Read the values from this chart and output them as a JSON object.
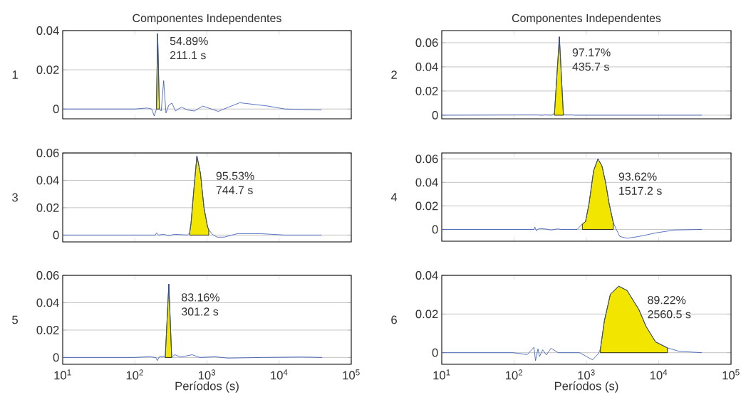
{
  "chart_data": [
    {
      "type": "line",
      "title": "Componentes Independentes",
      "ylabel": "1",
      "log": "x",
      "grid": "y",
      "tick_labels": "y",
      "xlim": [
        10,
        100000
      ],
      "ylim": [
        -0.005,
        0.04
      ],
      "xticks": [
        10,
        100,
        1000,
        10000,
        100000
      ],
      "yticks": [
        0,
        0.02,
        0.04
      ],
      "series": [
        {
          "type": "line",
          "color": "#3153b5",
          "x": [
            10,
            51,
            101,
            148,
            171,
            186,
            199,
            207,
            219,
            232,
            251,
            270,
            296,
            327,
            366,
            443,
            535,
            671,
            876,
            1432,
            2838,
            7047,
            11970,
            38700
          ],
          "values": [
            0,
            0,
            0,
            0.0005,
            0,
            -0.0036,
            0,
            0.0384,
            0,
            -0.001,
            0.0145,
            -0.002,
            0.002,
            0.003,
            -0.001,
            0.001,
            -0.0005,
            -0.001,
            0.0015,
            -0.0012,
            0.0032,
            0.0015,
            0,
            -0.0005
          ]
        },
        {
          "type": "area",
          "color": "#f2e600",
          "x": [
            199,
            207,
            219
          ],
          "values": [
            0,
            0.0384,
            0
          ]
        }
      ],
      "annotations": [
        "54.89%",
        "211.1 s"
      ]
    },
    {
      "type": "line",
      "title": "Componentes Independentes",
      "ylabel": "2",
      "log": "x",
      "grid": "y",
      "tick_labels": "y",
      "xlim": [
        10,
        100000
      ],
      "ylim": [
        -0.003,
        0.07
      ],
      "xticks": [
        10,
        100,
        1000,
        10000,
        100000
      ],
      "yticks": [
        0,
        0.02,
        0.04,
        0.06
      ],
      "series": [
        {
          "type": "line",
          "color": "#3153b5",
          "x": [
            10,
            206,
            240,
            268,
            324,
            362,
            423,
            480,
            511,
            640,
            690,
            39400
          ],
          "values": [
            0,
            0.0003,
            0,
            0.0003,
            0,
            0.0015,
            0.0649,
            0.001,
            0.0003,
            0.0003,
            0,
            0
          ]
        },
        {
          "type": "area",
          "color": "#f2e600",
          "x": [
            362,
            423,
            480
          ],
          "values": [
            0.0015,
            0.0649,
            0.001
          ]
        }
      ],
      "annotations": [
        "97.17%",
        "435.7 s"
      ]
    },
    {
      "type": "line",
      "ylabel": "3",
      "log": "x",
      "grid": "y",
      "tick_labels": "y",
      "xlim": [
        10,
        100000
      ],
      "ylim": [
        -0.005,
        0.06
      ],
      "xticks": [
        10,
        100,
        1000,
        10000,
        100000
      ],
      "yticks": [
        0,
        0.02,
        0.04,
        0.06
      ],
      "series": [
        {
          "type": "line",
          "color": "#3153b5",
          "x": [
            10,
            153,
            192,
            200,
            212,
            251,
            296,
            352,
            426,
            535,
            575,
            600,
            662,
            725,
            811,
            909,
            1019,
            1058,
            1186,
            1381,
            1733,
            2630,
            5610,
            11970,
            38700
          ],
          "values": [
            0,
            0,
            0,
            0.0017,
            0,
            0.0005,
            -0.0005,
            0.0005,
            0.0003,
            0,
            0.0015,
            0.0084,
            0.035,
            0.0579,
            0.0453,
            0.02,
            0.006,
            0.004,
            0.0005,
            -0.0015,
            -0.0015,
            0.001,
            0.001,
            0,
            0
          ]
        },
        {
          "type": "area",
          "color": "#f2e600",
          "x": [
            575,
            600,
            662,
            725,
            811,
            909,
            1019,
            1058
          ],
          "values": [
            0.0015,
            0.0084,
            0.035,
            0.0579,
            0.0453,
            0.02,
            0.006,
            0.004
          ]
        }
      ],
      "annotations": [
        "95.53%",
        "744.7 s"
      ]
    },
    {
      "type": "line",
      "ylabel": "4",
      "log": "x",
      "grid": "y",
      "tick_labels": "y",
      "xlim": [
        10,
        100000
      ],
      "ylim": [
        -0.01,
        0.065
      ],
      "xticks": [
        10,
        100,
        1000,
        10000,
        100000
      ],
      "yticks": [
        0,
        0.02,
        0.04,
        0.06
      ],
      "series": [
        {
          "type": "line",
          "color": "#3153b5",
          "x": [
            10,
            188,
            194,
            203,
            222,
            279,
            324,
            407,
            439,
            745,
            879,
            971,
            1087,
            1259,
            1445,
            1641,
            1845,
            2066,
            2350,
            2592,
            2904,
            3647,
            5320,
            9040,
            16500,
            39400
          ],
          "values": [
            0,
            0,
            0.002,
            -0.001,
            0.0008,
            0.0003,
            -0.0005,
            0.0005,
            0,
            0,
            0.0046,
            0.0066,
            0.0218,
            0.05,
            0.06,
            0.054,
            0.0399,
            0.0218,
            0.006,
            0,
            -0.006,
            -0.0075,
            -0.006,
            -0.003,
            -0.0005,
            0
          ]
        },
        {
          "type": "area",
          "color": "#f2e600",
          "x": [
            879,
            971,
            1087,
            1259,
            1445,
            1641,
            1845,
            2066,
            2350
          ],
          "values": [
            0.0046,
            0.0066,
            0.0218,
            0.05,
            0.06,
            0.054,
            0.0399,
            0.0218,
            0.006
          ]
        }
      ],
      "annotations": [
        "93.62%",
        "1517.2 s"
      ]
    },
    {
      "type": "line",
      "ylabel": "5",
      "xlabel": "Períodos (s)",
      "log": "x",
      "grid": "y",
      "xlim": [
        10,
        100000
      ],
      "ylim": [
        -0.005,
        0.06
      ],
      "xticks": [
        {
          "value": 10,
          "label": "10$^{1}$"
        },
        {
          "value": 100,
          "label": "10$^{2}$"
        },
        {
          "value": 1000,
          "label": "10$^{3}$"
        },
        {
          "value": 10000,
          "label": "10$^{4}$"
        },
        {
          "value": 100000,
          "label": "10$^{5}$"
        }
      ],
      "yticks": [
        0,
        0.02,
        0.04,
        0.06
      ],
      "series": [
        {
          "type": "line",
          "color": "#3153b5",
          "x": [
            10,
            99,
            128,
            162,
            195,
            205,
            219,
            264,
            296,
            324,
            358,
            432,
            622,
            794,
            1300,
            1972,
            5700,
            20700,
            39400
          ],
          "values": [
            0,
            0,
            0.0003,
            0.0005,
            0,
            -0.0023,
            0.0005,
            0.0005,
            0.0537,
            0.0003,
            0.002,
            0.0003,
            0.002,
            0,
            0.0005,
            -0.0005,
            0,
            0.0003,
            0
          ]
        },
        {
          "type": "area",
          "color": "#f2e600",
          "x": [
            264,
            296,
            324
          ],
          "values": [
            0.0005,
            0.0537,
            0.0003
          ]
        }
      ],
      "annotations": [
        "83.16%",
        "301.2 s"
      ]
    },
    {
      "type": "line",
      "ylabel": "6",
      "xlabel": "Períodos (s)",
      "log": "x",
      "grid": "y",
      "xlim": [
        10,
        100000
      ],
      "ylim": [
        -0.006,
        0.04
      ],
      "xticks": [
        {
          "value": 10,
          "label": "10$^{1}$"
        },
        {
          "value": 100,
          "label": "10$^{2}$"
        },
        {
          "value": 1000,
          "label": "10$^{3}$"
        },
        {
          "value": 10000,
          "label": "10$^{4}$"
        },
        {
          "value": 100000,
          "label": "10$^{5}$"
        }
      ],
      "yticks": [
        0,
        0.02,
        0.04
      ],
      "series": [
        {
          "type": "line",
          "color": "#3153b5",
          "x": [
            10,
            97,
            152,
            188,
            198,
            214,
            225,
            249,
            279,
            324,
            407,
            804,
            1216,
            1469,
            1563,
            1778,
            2148,
            2800,
            3649,
            5320,
            6680,
            9040,
            13180,
            19200,
            39400
          ],
          "values": [
            0,
            0,
            -0.001,
            0.0028,
            -0.0041,
            0.002,
            -0.002,
            0.0015,
            -0.0012,
            0.0023,
            0,
            0,
            -0.0037,
            -0.0005,
            0.002,
            0.0167,
            0.0303,
            0.0344,
            0.0322,
            0.0223,
            0.0136,
            0.0056,
            0.0025,
            0.0007,
            0
          ]
        },
        {
          "type": "area",
          "color": "#f2e600",
          "x": [
            1563,
            1778,
            2148,
            2800,
            3649,
            5320,
            6680,
            9040,
            13180
          ],
          "values": [
            0.002,
            0.0167,
            0.0303,
            0.0344,
            0.0322,
            0.0223,
            0.0136,
            0.0056,
            0.0025
          ]
        }
      ],
      "annotations": [
        "89.22%",
        "2560.5 s"
      ]
    }
  ]
}
